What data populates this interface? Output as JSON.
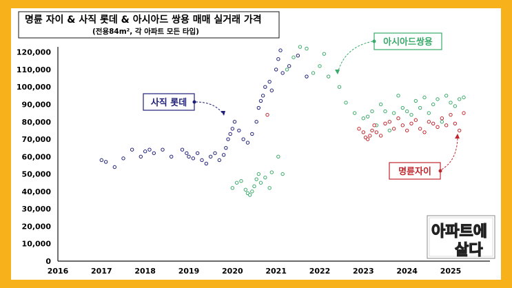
{
  "chart_data": {
    "type": "scatter",
    "title": "명륜 자이 & 사직 롯데 & 아시아드 쌍용 매매 실거래 가격",
    "subtitle": "(전용84m², 각 아파트 모든 타입)",
    "xlabel": "",
    "ylabel": "",
    "xlim": [
      2016,
      2025.9
    ],
    "ylim": [
      0,
      125000
    ],
    "x_ticks": [
      "2016",
      "2017",
      "2018",
      "2019",
      "2020",
      "2021",
      "2022",
      "2023",
      "2024",
      "2025"
    ],
    "y_ticks": [
      "0",
      "10,000",
      "20,000",
      "30,000",
      "40,000",
      "50,000",
      "60,000",
      "70,000",
      "80,000",
      "90,000",
      "100,000",
      "110,000",
      "120,000"
    ],
    "legend_position": "annotations",
    "series": [
      {
        "name": "사직 롯데",
        "label": "사직 롯데",
        "color": "#1f1f78",
        "points": [
          [
            2017.0,
            58000
          ],
          [
            2017.1,
            57000
          ],
          [
            2017.3,
            54000
          ],
          [
            2017.5,
            59000
          ],
          [
            2017.7,
            64000
          ],
          [
            2017.9,
            60000
          ],
          [
            2018.0,
            63000
          ],
          [
            2018.1,
            64000
          ],
          [
            2018.2,
            62000
          ],
          [
            2018.4,
            64000
          ],
          [
            2018.6,
            60000
          ],
          [
            2018.85,
            64000
          ],
          [
            2018.95,
            62000
          ],
          [
            2019.0,
            60000
          ],
          [
            2019.1,
            59000
          ],
          [
            2019.2,
            62000
          ],
          [
            2019.3,
            58000
          ],
          [
            2019.4,
            56000
          ],
          [
            2019.5,
            60000
          ],
          [
            2019.6,
            62000
          ],
          [
            2019.7,
            58000
          ],
          [
            2019.8,
            61000
          ],
          [
            2019.85,
            65000
          ],
          [
            2019.9,
            70000
          ],
          [
            2019.95,
            73000
          ],
          [
            2020.0,
            76000
          ],
          [
            2020.05,
            80000
          ],
          [
            2020.15,
            75000
          ],
          [
            2020.25,
            70000
          ],
          [
            2020.35,
            68000
          ],
          [
            2020.45,
            73000
          ],
          [
            2020.55,
            80000
          ],
          [
            2020.6,
            88000
          ],
          [
            2020.65,
            92000
          ],
          [
            2020.7,
            95000
          ],
          [
            2020.75,
            100000
          ],
          [
            2020.85,
            103000
          ],
          [
            2020.9,
            98000
          ],
          [
            2021.0,
            110000
          ],
          [
            2021.05,
            116000
          ],
          [
            2021.1,
            121000
          ],
          [
            2021.15,
            108000
          ],
          [
            2021.3,
            112000
          ],
          [
            2021.5,
            118000
          ],
          [
            2021.7,
            106000
          ]
        ]
      },
      {
        "name": "아시아드쌍용",
        "label": "아시아드쌍용",
        "color": "#3aaa6a",
        "points": [
          [
            2020.0,
            42000
          ],
          [
            2020.1,
            45000
          ],
          [
            2020.2,
            46000
          ],
          [
            2020.3,
            41000
          ],
          [
            2020.35,
            39000
          ],
          [
            2020.4,
            38000
          ],
          [
            2020.45,
            40000
          ],
          [
            2020.5,
            43000
          ],
          [
            2020.55,
            47000
          ],
          [
            2020.6,
            50000
          ],
          [
            2020.65,
            45000
          ],
          [
            2020.75,
            48000
          ],
          [
            2020.85,
            42000
          ],
          [
            2020.9,
            51000
          ],
          [
            2021.05,
            60000
          ],
          [
            2021.15,
            50000
          ],
          [
            2021.25,
            110000
          ],
          [
            2021.4,
            117000
          ],
          [
            2021.55,
            123000
          ],
          [
            2021.7,
            122000
          ],
          [
            2021.85,
            108000
          ],
          [
            2022.0,
            112000
          ],
          [
            2022.1,
            119000
          ],
          [
            2022.2,
            106000
          ],
          [
            2022.45,
            100000
          ],
          [
            2022.6,
            91000
          ],
          [
            2022.8,
            85000
          ],
          [
            2023.0,
            82000
          ],
          [
            2023.1,
            83000
          ],
          [
            2023.2,
            86000
          ],
          [
            2023.3,
            78000
          ],
          [
            2023.4,
            90000
          ],
          [
            2023.5,
            86000
          ],
          [
            2023.6,
            75000
          ],
          [
            2023.7,
            85000
          ],
          [
            2023.8,
            95000
          ],
          [
            2023.9,
            88000
          ],
          [
            2024.0,
            86000
          ],
          [
            2024.1,
            84000
          ],
          [
            2024.2,
            92000
          ],
          [
            2024.3,
            88000
          ],
          [
            2024.4,
            94000
          ],
          [
            2024.5,
            85000
          ],
          [
            2024.6,
            90000
          ],
          [
            2024.7,
            93000
          ],
          [
            2024.8,
            80000
          ],
          [
            2024.9,
            95000
          ],
          [
            2025.0,
            91000
          ],
          [
            2025.1,
            89000
          ],
          [
            2025.2,
            93000
          ],
          [
            2025.3,
            94000
          ]
        ]
      },
      {
        "name": "명륜자이",
        "label": "명륜자이",
        "color": "#c0262d",
        "points": [
          [
            2020.8,
            84000
          ],
          [
            2022.9,
            76000
          ],
          [
            2023.0,
            74000
          ],
          [
            2023.05,
            71000
          ],
          [
            2023.1,
            70000
          ],
          [
            2023.15,
            72000
          ],
          [
            2023.2,
            75000
          ],
          [
            2023.25,
            78000
          ],
          [
            2023.3,
            74000
          ],
          [
            2023.4,
            72000
          ],
          [
            2023.5,
            79000
          ],
          [
            2023.6,
            80000
          ],
          [
            2023.7,
            76000
          ],
          [
            2023.8,
            82000
          ],
          [
            2023.9,
            78000
          ],
          [
            2024.0,
            75000
          ],
          [
            2024.1,
            79000
          ],
          [
            2024.2,
            81000
          ],
          [
            2024.3,
            76000
          ],
          [
            2024.4,
            74000
          ],
          [
            2024.5,
            80000
          ],
          [
            2024.6,
            79000
          ],
          [
            2024.7,
            77000
          ],
          [
            2024.8,
            82000
          ],
          [
            2024.9,
            78000
          ],
          [
            2025.0,
            84000
          ],
          [
            2025.1,
            79000
          ],
          [
            2025.2,
            75000
          ],
          [
            2025.3,
            85000
          ]
        ]
      }
    ],
    "annotations": [
      {
        "text": "사직 롯데",
        "series": 0
      },
      {
        "text": "아시아드쌍용",
        "series": 1
      },
      {
        "text": "명륜자이",
        "series": 2
      }
    ]
  },
  "logo": {
    "line1": "아파트에",
    "line2": "살다"
  },
  "colors": {
    "frame": "#f7b21b",
    "axis": "#111111",
    "title_border": "#111111"
  }
}
